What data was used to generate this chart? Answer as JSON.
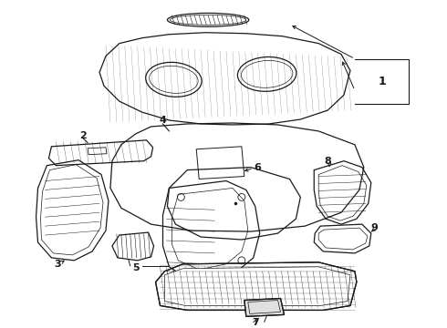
{
  "bg_color": "#ffffff",
  "line_color": "#1a1a1a",
  "lw": 0.9,
  "figsize": [
    4.9,
    3.6
  ],
  "dpi": 100
}
